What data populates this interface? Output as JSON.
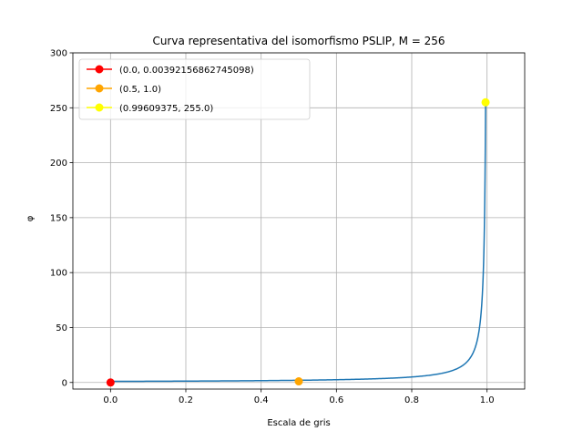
{
  "chart_data": {
    "type": "line",
    "title": "Curva representativa del isomorfismo PSLIP, M = 256",
    "xlabel": "Escala de gris",
    "ylabel": "φ",
    "xlim": [
      -0.1,
      1.1
    ],
    "ylim": [
      -6,
      300
    ],
    "xticks": [
      0.0,
      0.2,
      0.4,
      0.6,
      0.8,
      1.0
    ],
    "xtick_labels": [
      "0.0",
      "0.2",
      "0.4",
      "0.6",
      "0.8",
      "1.0"
    ],
    "yticks": [
      0,
      50,
      100,
      150,
      200,
      250,
      300
    ],
    "ytick_labels": [
      "0",
      "50",
      "100",
      "150",
      "200",
      "250",
      "300"
    ],
    "grid": true,
    "legend_position": "top-left",
    "curve": {
      "M": 256,
      "formula": "1 / (1 - x)",
      "color": "#1f77b4",
      "x": [
        0,
        0.1,
        0.2,
        0.3,
        0.4,
        0.5,
        0.6,
        0.7,
        0.8,
        0.85,
        0.9,
        0.92,
        0.94,
        0.96,
        0.97,
        0.98,
        0.985,
        0.99,
        0.99609375
      ],
      "y": [
        1,
        1.11,
        1.25,
        1.43,
        1.67,
        2,
        2.5,
        3.33,
        5,
        6.67,
        10,
        12.5,
        16.67,
        25,
        33.33,
        50,
        66.67,
        100,
        256
      ]
    },
    "series": [
      {
        "name": "(0.0, 0.00392156862745098)",
        "x": 0.0,
        "y": 0.00392156862745098,
        "color": "#ff0000"
      },
      {
        "name": "(0.5, 1.0)",
        "x": 0.5,
        "y": 1.0,
        "color": "#ffa500"
      },
      {
        "name": "(0.99609375, 255.0)",
        "x": 0.99609375,
        "y": 255.0,
        "color": "#ffff00"
      }
    ]
  }
}
